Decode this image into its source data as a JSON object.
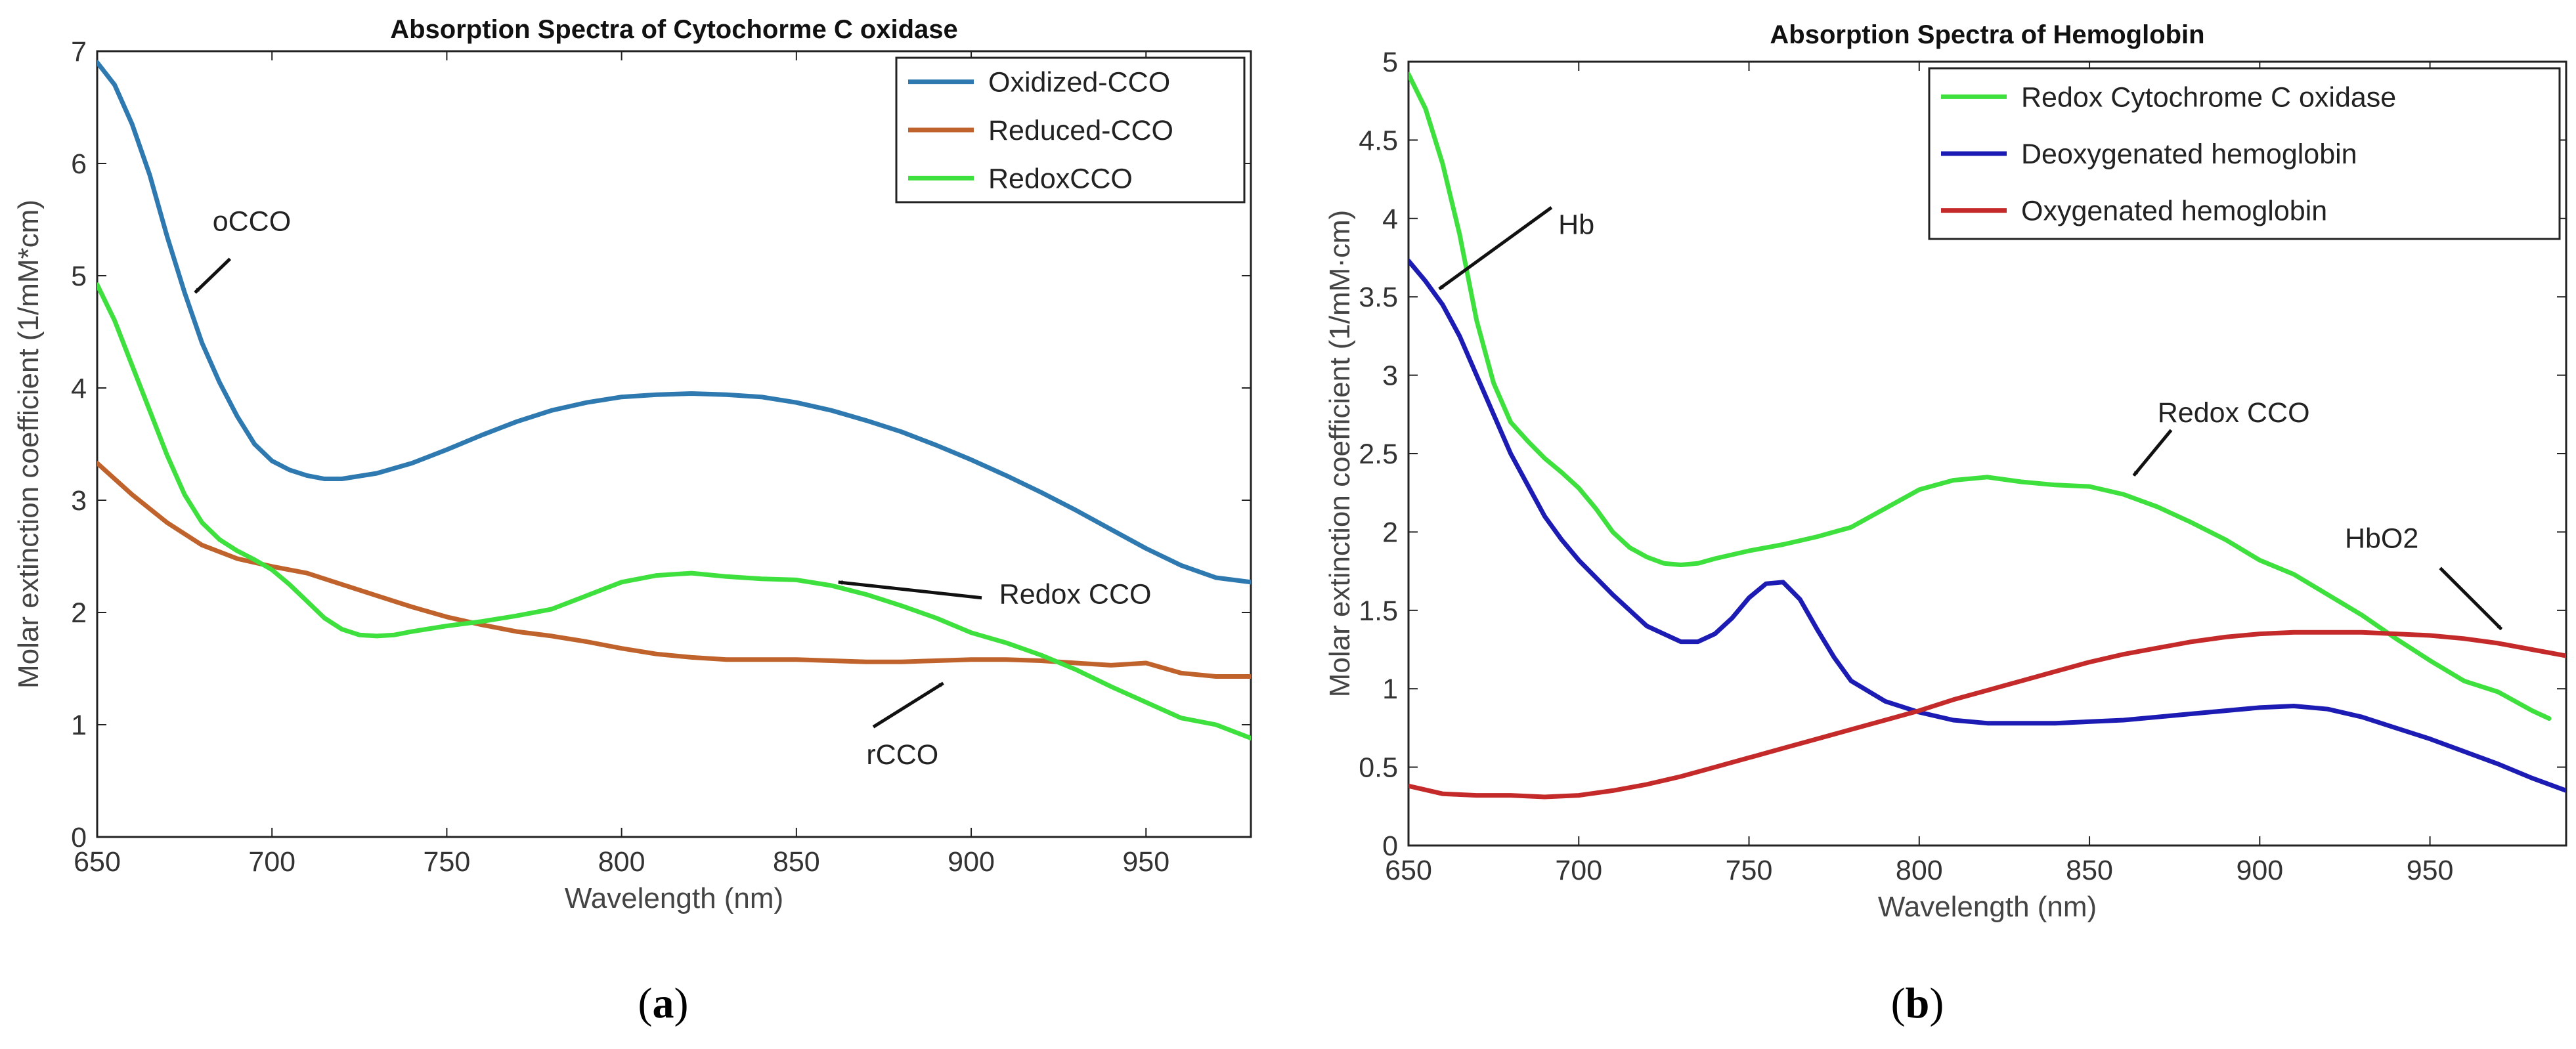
{
  "chart_data": [
    {
      "type": "line",
      "panel": "a",
      "caption": {
        "open": "(",
        "letter": "a",
        "close": ")"
      },
      "title": "Absorption Spectra of Cytochorme C oxidase",
      "xlabel": "Wavelength (nm)",
      "ylabel": "Molar extinction coefficient (1/mM*cm)",
      "xlim": [
        650,
        980
      ],
      "ylim": [
        0,
        7
      ],
      "xticks": [
        650,
        700,
        750,
        800,
        850,
        900,
        950
      ],
      "yticks": [
        0,
        1,
        2,
        3,
        4,
        5,
        6,
        7
      ],
      "legend_position": "top-right",
      "series": [
        {
          "name": "Oxidized-CCO",
          "color": "#2e79b0",
          "x": [
            650,
            655,
            660,
            665,
            670,
            675,
            680,
            685,
            690,
            695,
            700,
            705,
            710,
            715,
            720,
            730,
            740,
            750,
            760,
            770,
            780,
            790,
            800,
            810,
            820,
            830,
            840,
            850,
            860,
            870,
            880,
            890,
            900,
            910,
            920,
            930,
            940,
            950,
            960,
            970,
            980
          ],
          "y": [
            6.9,
            6.7,
            6.35,
            5.9,
            5.35,
            4.85,
            4.4,
            4.05,
            3.75,
            3.5,
            3.35,
            3.27,
            3.22,
            3.19,
            3.19,
            3.24,
            3.33,
            3.45,
            3.58,
            3.7,
            3.8,
            3.87,
            3.92,
            3.94,
            3.95,
            3.94,
            3.92,
            3.87,
            3.8,
            3.71,
            3.61,
            3.49,
            3.36,
            3.22,
            3.07,
            2.91,
            2.74,
            2.57,
            2.42,
            2.31,
            2.27
          ]
        },
        {
          "name": "Reduced-CCO",
          "color": "#c0622c",
          "x": [
            650,
            660,
            670,
            680,
            690,
            700,
            710,
            720,
            730,
            740,
            750,
            760,
            770,
            780,
            790,
            800,
            810,
            820,
            830,
            840,
            850,
            860,
            870,
            880,
            890,
            900,
            910,
            920,
            930,
            940,
            950,
            960,
            970,
            980
          ],
          "y": [
            3.33,
            3.05,
            2.8,
            2.6,
            2.48,
            2.41,
            2.35,
            2.25,
            2.15,
            2.05,
            1.96,
            1.89,
            1.83,
            1.79,
            1.74,
            1.68,
            1.63,
            1.6,
            1.58,
            1.58,
            1.58,
            1.57,
            1.56,
            1.56,
            1.57,
            1.58,
            1.58,
            1.57,
            1.55,
            1.53,
            1.55,
            1.46,
            1.43,
            1.43
          ]
        },
        {
          "name": "RedoxCCO",
          "color": "#3ee03e",
          "x": [
            650,
            655,
            660,
            665,
            670,
            675,
            680,
            685,
            690,
            695,
            700,
            705,
            710,
            715,
            720,
            725,
            730,
            735,
            740,
            750,
            760,
            770,
            780,
            790,
            800,
            810,
            820,
            830,
            840,
            850,
            860,
            870,
            880,
            890,
            900,
            910,
            920,
            930,
            940,
            950,
            960,
            970,
            980
          ],
          "y": [
            4.92,
            4.6,
            4.2,
            3.8,
            3.4,
            3.05,
            2.8,
            2.65,
            2.55,
            2.47,
            2.38,
            2.25,
            2.1,
            1.95,
            1.85,
            1.8,
            1.79,
            1.8,
            1.83,
            1.88,
            1.92,
            1.97,
            2.03,
            2.15,
            2.27,
            2.33,
            2.35,
            2.32,
            2.3,
            2.29,
            2.24,
            2.16,
            2.06,
            1.95,
            1.82,
            1.73,
            1.62,
            1.49,
            1.34,
            1.2,
            1.06,
            1.0,
            0.88
          ]
        }
      ],
      "annotations": [
        {
          "text": "oCCO",
          "text_x": 683,
          "text_y": 5.4,
          "tail_x": 688,
          "tail_y": 5.15,
          "head_x": 678,
          "head_y": 4.85
        },
        {
          "text": "Redox CCO",
          "text_x": 908,
          "text_y": 2.08,
          "tail_x": 903,
          "tail_y": 2.13,
          "head_x": 862,
          "head_y": 2.27
        },
        {
          "text": "rCCO",
          "text_x": 870,
          "text_y": 0.65,
          "tail_x": 872,
          "tail_y": 0.98,
          "head_x": 892,
          "head_y": 1.37
        }
      ]
    },
    {
      "type": "line",
      "panel": "b",
      "caption": {
        "open": "(",
        "letter": "b",
        "close": ")"
      },
      "title": "Absorption Spectra of Hemoglobin",
      "xlabel": "Wavelength (nm)",
      "ylabel": "Molar extinction coefficient (1/mM·cm)",
      "xlim": [
        650,
        990
      ],
      "ylim": [
        0,
        5
      ],
      "xticks": [
        650,
        700,
        750,
        800,
        850,
        900,
        950
      ],
      "yticks": [
        0,
        0.5,
        1,
        1.5,
        2,
        2.5,
        3,
        3.5,
        4,
        4.5,
        5
      ],
      "ytick_labels": [
        "0",
        "0.5",
        "1",
        "1.5",
        "2",
        "2.5",
        "3",
        "3.5",
        "4",
        "4.5",
        "5"
      ],
      "legend_position": "top-right",
      "series": [
        {
          "name": "Redox Cytochrome C oxidase",
          "color": "#3ee03e",
          "x": [
            650,
            655,
            660,
            665,
            670,
            675,
            680,
            685,
            690,
            695,
            700,
            705,
            710,
            715,
            720,
            725,
            730,
            735,
            740,
            750,
            760,
            770,
            780,
            790,
            800,
            810,
            820,
            830,
            840,
            850,
            860,
            870,
            880,
            890,
            900,
            910,
            920,
            930,
            940,
            950,
            960,
            970,
            980,
            985
          ],
          "y": [
            4.92,
            4.7,
            4.35,
            3.9,
            3.35,
            2.95,
            2.7,
            2.58,
            2.47,
            2.38,
            2.28,
            2.15,
            2.0,
            1.9,
            1.84,
            1.8,
            1.79,
            1.8,
            1.83,
            1.88,
            1.92,
            1.97,
            2.03,
            2.15,
            2.27,
            2.33,
            2.35,
            2.32,
            2.3,
            2.29,
            2.24,
            2.16,
            2.06,
            1.95,
            1.82,
            1.73,
            1.6,
            1.47,
            1.32,
            1.18,
            1.05,
            0.98,
            0.86,
            0.81
          ]
        },
        {
          "name": "Deoxygenated hemoglobin",
          "color": "#1c1cb4",
          "x": [
            650,
            655,
            660,
            665,
            670,
            675,
            680,
            685,
            690,
            695,
            700,
            710,
            720,
            730,
            735,
            740,
            745,
            750,
            755,
            760,
            765,
            770,
            775,
            780,
            790,
            800,
            810,
            820,
            840,
            860,
            880,
            900,
            910,
            920,
            930,
            940,
            950,
            960,
            970,
            980,
            990
          ],
          "y": [
            3.73,
            3.6,
            3.45,
            3.25,
            3.0,
            2.75,
            2.5,
            2.3,
            2.1,
            1.95,
            1.82,
            1.6,
            1.4,
            1.3,
            1.3,
            1.35,
            1.45,
            1.58,
            1.67,
            1.68,
            1.57,
            1.38,
            1.2,
            1.05,
            0.92,
            0.85,
            0.8,
            0.78,
            0.78,
            0.8,
            0.84,
            0.88,
            0.89,
            0.87,
            0.82,
            0.75,
            0.68,
            0.6,
            0.52,
            0.43,
            0.35
          ]
        },
        {
          "name": "Oxygenated hemoglobin",
          "color": "#c42a2a",
          "x": [
            650,
            660,
            670,
            680,
            690,
            700,
            710,
            720,
            730,
            740,
            750,
            760,
            770,
            780,
            790,
            800,
            810,
            820,
            830,
            840,
            850,
            860,
            870,
            880,
            890,
            900,
            910,
            920,
            930,
            940,
            950,
            960,
            970,
            980,
            990
          ],
          "y": [
            0.38,
            0.33,
            0.32,
            0.32,
            0.31,
            0.32,
            0.35,
            0.39,
            0.44,
            0.5,
            0.56,
            0.62,
            0.68,
            0.74,
            0.8,
            0.86,
            0.93,
            0.99,
            1.05,
            1.11,
            1.17,
            1.22,
            1.26,
            1.3,
            1.33,
            1.35,
            1.36,
            1.36,
            1.36,
            1.35,
            1.34,
            1.32,
            1.29,
            1.25,
            1.21
          ]
        }
      ],
      "annotations": [
        {
          "text": "Hb",
          "text_x": 694,
          "text_y": 3.9,
          "tail_x": 692,
          "tail_y": 4.07,
          "head_x": 659,
          "head_y": 3.55
        },
        {
          "text": "Redox CCO",
          "text_x": 870,
          "text_y": 2.7,
          "tail_x": 874,
          "tail_y": 2.65,
          "head_x": 863,
          "head_y": 2.36
        },
        {
          "text": "HbO2",
          "text_x": 925,
          "text_y": 1.9,
          "tail_x": 953,
          "tail_y": 1.77,
          "head_x": 971,
          "head_y": 1.38
        }
      ]
    }
  ]
}
